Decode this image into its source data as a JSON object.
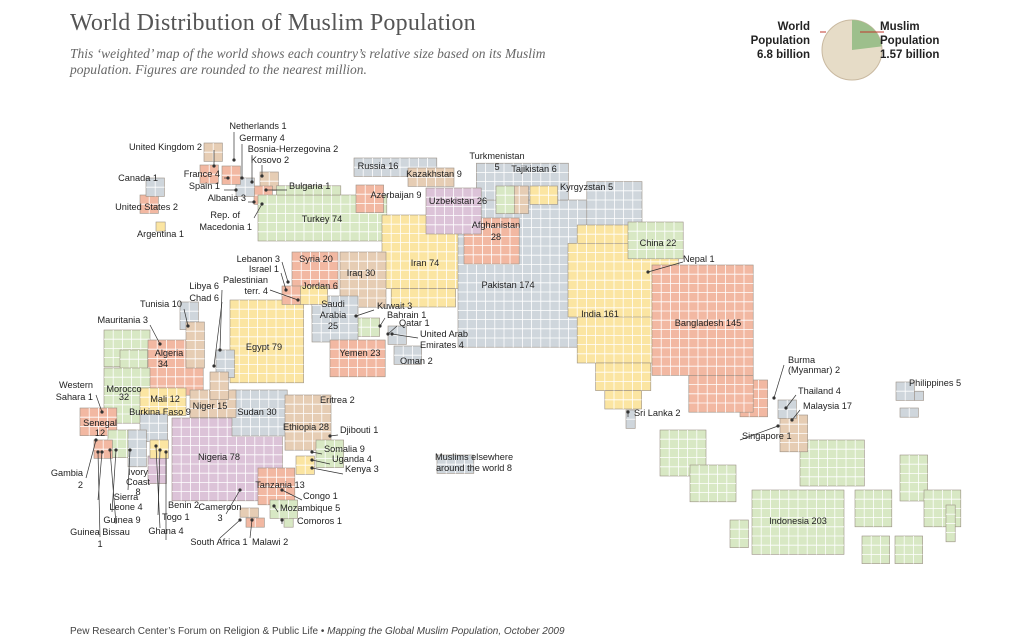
{
  "title": "World Distribution of Muslim Population",
  "subtitle": "This ‘weighted’ map of the world shows each country’s relative size based on its Muslim population. Figures are rounded to the nearest million.",
  "pie": {
    "world_label_1": "World",
    "world_label_2": "Population",
    "world_value": "6.8 billion",
    "muslim_label_1": "Muslim",
    "muslim_label_2": "Population",
    "muslim_value": "1.57 billion",
    "world_total": 6.8,
    "muslim_total": 1.57,
    "colors": {
      "world": "#e6dcc7",
      "muslim": "#9dbf8c",
      "outline": "#c9b9a0",
      "leader": "#c0392b"
    }
  },
  "footer": {
    "source": "Pew Research Center’s Forum on Religion & Public Life •",
    "publication": "Mapping the Global Muslim Population, October 2009"
  },
  "colors": {
    "green": "#d8e8c4",
    "yellow": "#fbe5a2",
    "salmon": "#f2b8a2",
    "tan": "#e6cdb4",
    "grey": "#cfd6dc",
    "purple": "#dcc3d8",
    "grid": "#ffffff",
    "label": "#222222",
    "leader": "#333333",
    "outline": "#9a8f84"
  },
  "regions": [
    {
      "name": "Turkey",
      "value": "74"
    },
    {
      "name": "Iran",
      "value": "74"
    },
    {
      "name": "Pakistan",
      "value": "174"
    },
    {
      "name": "India",
      "value": "161"
    },
    {
      "name": "Bangladesh",
      "value": "145"
    },
    {
      "name": "Egypt",
      "value": "79"
    },
    {
      "name": "Nigeria",
      "value": "78"
    },
    {
      "name": "Indonesia",
      "value": "203"
    },
    {
      "name": "Algeria",
      "value": "34"
    },
    {
      "name": "Morocco",
      "value": "32"
    },
    {
      "name": "Sudan",
      "value": "30"
    },
    {
      "name": "Iraq",
      "value": "30"
    },
    {
      "name": "Afghanistan",
      "value": "28"
    },
    {
      "name": "Ethiopia",
      "value": "28"
    },
    {
      "name": "Uzbekistan",
      "value": "26"
    },
    {
      "name": "Saudi Arabia",
      "value": "25"
    },
    {
      "name": "Yemen",
      "value": "23"
    },
    {
      "name": "China",
      "value": "22"
    },
    {
      "name": "Syria",
      "value": "20"
    },
    {
      "name": "Malaysia",
      "value": "17"
    },
    {
      "name": "Russia",
      "value": "16"
    },
    {
      "name": "Niger",
      "value": "15"
    },
    {
      "name": "Tanzania",
      "value": "13"
    },
    {
      "name": "Senegal",
      "value": "12"
    },
    {
      "name": "Mali",
      "value": "12"
    },
    {
      "name": "Tunisia",
      "value": "10"
    },
    {
      "name": "Somalia",
      "value": "9"
    },
    {
      "name": "Kazakhstan",
      "value": "9"
    },
    {
      "name": "Azerbaijan",
      "value": "9"
    },
    {
      "name": "Burkina Faso",
      "value": "9"
    },
    {
      "name": "Guinea",
      "value": "9"
    },
    {
      "name": "Ivory Coast",
      "value": "8"
    },
    {
      "name": "Muslims elsewhere around the world",
      "value": "8"
    },
    {
      "name": "Tajikistan",
      "value": "6"
    },
    {
      "name": "Jordan",
      "value": "6"
    },
    {
      "name": "Libya",
      "value": "6"
    },
    {
      "name": "Chad",
      "value": "6"
    },
    {
      "name": "Turkmenistan",
      "value": "5"
    },
    {
      "name": "Kyrgyzstan",
      "value": "5"
    },
    {
      "name": "Philippines",
      "value": "5"
    },
    {
      "name": "Mozambique",
      "value": "5"
    },
    {
      "name": "Germany",
      "value": "4"
    },
    {
      "name": "France",
      "value": "4"
    },
    {
      "name": "Palestinian terr.",
      "value": "4"
    },
    {
      "name": "United Arab Emirates",
      "value": "4"
    },
    {
      "name": "Thailand",
      "value": "4"
    },
    {
      "name": "Uganda",
      "value": "4"
    },
    {
      "name": "Sierra Leone",
      "value": "4"
    },
    {
      "name": "Ghana",
      "value": "4"
    }
  ],
  "labels": [
    {
      "text": "Netherlands 1"
    },
    {
      "text": "Germany 4"
    },
    {
      "text": "Bosnia-Herzegovina 2"
    },
    {
      "text": "United Kingdom 2"
    },
    {
      "text": "Kosovo 2"
    },
    {
      "text": "France 4"
    },
    {
      "text": "Spain 1"
    },
    {
      "text": "Albania 3"
    },
    {
      "text": "Bulgaria 1"
    },
    {
      "text": "Rep. of"
    },
    {
      "text": "Macedonia 1"
    },
    {
      "text": "Canada 1"
    },
    {
      "text": "United States 2"
    },
    {
      "text": "Argentina 1"
    },
    {
      "text": "Russia 16"
    },
    {
      "text": "Kazakhstan 9"
    },
    {
      "text": "Turkmenistan"
    },
    {
      "text": "5"
    },
    {
      "text": "Tajikistan 6"
    },
    {
      "text": "Kyrgyzstan 5"
    },
    {
      "text": "Azerbaijan 9"
    },
    {
      "text": "Uzbekistan 26"
    },
    {
      "text": "Turkey 74"
    },
    {
      "text": "Afghanistan"
    },
    {
      "text": "28"
    },
    {
      "text": "China 22"
    },
    {
      "text": "Nepal 1"
    },
    {
      "text": "Lebanon 3"
    },
    {
      "text": "Israel 1"
    },
    {
      "text": "Syria 20"
    },
    {
      "text": "Iraq 30"
    },
    {
      "text": "Iran 74"
    },
    {
      "text": "Pakistan 174"
    },
    {
      "text": "Palestinian"
    },
    {
      "text": "terr. 4"
    },
    {
      "text": "Jordan 6"
    },
    {
      "text": "Libya 6"
    },
    {
      "text": "Chad 6"
    },
    {
      "text": "Tunisia 10"
    },
    {
      "text": "Saudi"
    },
    {
      "text": "Arabia"
    },
    {
      "text": "25"
    },
    {
      "text": "Kuwait 3"
    },
    {
      "text": "Bahrain 1"
    },
    {
      "text": "Qatar 1"
    },
    {
      "text": "United Arab"
    },
    {
      "text": "Emirates 4"
    },
    {
      "text": "India 161"
    },
    {
      "text": "Bangladesh 145"
    },
    {
      "text": "Mauritania 3"
    },
    {
      "text": "Algeria"
    },
    {
      "text": "34"
    },
    {
      "text": "Egypt 79"
    },
    {
      "text": "Yemen 23"
    },
    {
      "text": "Oman 2"
    },
    {
      "text": "Western"
    },
    {
      "text": "Sahara 1"
    },
    {
      "text": "Morocco"
    },
    {
      "text": "32"
    },
    {
      "text": "Mali 12"
    },
    {
      "text": "Burkina Faso 9"
    },
    {
      "text": "Niger 15"
    },
    {
      "text": "Sudan 30"
    },
    {
      "text": "Eritrea 2"
    },
    {
      "text": "Burma"
    },
    {
      "text": "(Myanmar) 2"
    },
    {
      "text": "Thailand 4"
    },
    {
      "text": "Philippines 5"
    },
    {
      "text": "Senegal"
    },
    {
      "text": "12"
    },
    {
      "text": "Ethiopia 28"
    },
    {
      "text": "Djibouti 1"
    },
    {
      "text": "Sri Lanka 2"
    },
    {
      "text": "Malaysia 17"
    },
    {
      "text": "Singapore 1"
    },
    {
      "text": "Nigeria 78"
    },
    {
      "text": "Somalia 9"
    },
    {
      "text": "Uganda 4"
    },
    {
      "text": "Kenya 3"
    },
    {
      "text": "Muslims elsewhere"
    },
    {
      "text": "around the world 8"
    },
    {
      "text": "Gambia"
    },
    {
      "text": "2"
    },
    {
      "text": "Ivory"
    },
    {
      "text": "Coast"
    },
    {
      "text": "8"
    },
    {
      "text": "Sierra"
    },
    {
      "text": "Leone 4"
    },
    {
      "text": "Guinea 9"
    },
    {
      "text": "Benin 2"
    },
    {
      "text": "Togo 1"
    },
    {
      "text": "Ghana 4"
    },
    {
      "text": "Tanzania 13"
    },
    {
      "text": "Congo 1"
    },
    {
      "text": "Cameroon"
    },
    {
      "text": "3"
    },
    {
      "text": "Mozambique 5"
    },
    {
      "text": "Comoros 1"
    },
    {
      "text": "Guinea Bissau"
    },
    {
      "text": "1"
    },
    {
      "text": "South Africa 1"
    },
    {
      "text": "Malawi 2"
    },
    {
      "text": "Indonesia 203"
    }
  ]
}
